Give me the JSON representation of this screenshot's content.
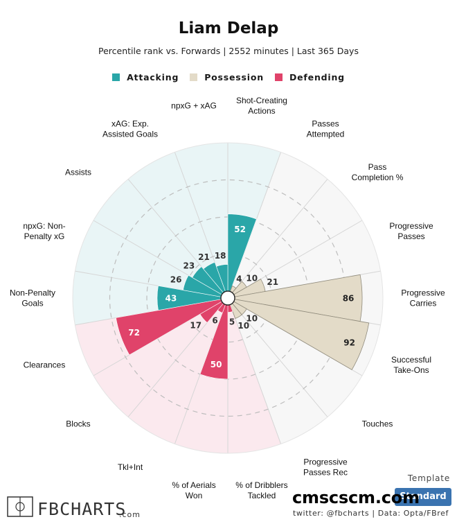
{
  "title": "Liam Delap",
  "subtitle": "Percentile rank vs. Forwards | 2552 minutes | Last 365 Days",
  "legend": [
    {
      "label": "Attacking",
      "color": "#2aa6a8"
    },
    {
      "label": "Possession",
      "color": "#e3dbc8"
    },
    {
      "label": "Defending",
      "color": "#e0436a"
    }
  ],
  "chart_data": {
    "type": "polar_bar",
    "title": "Liam Delap",
    "subtitle": "Percentile rank vs. Forwards | 2552 minutes | Last 365 Days",
    "rlim": [
      0,
      100
    ],
    "categories": [
      {
        "label": "Shot-Creating Actions",
        "lines": [
          "Shot-Creating",
          "Actions"
        ],
        "group": "Attacking",
        "value": 52
      },
      {
        "label": "Passes Attempted",
        "lines": [
          "Passes",
          "Attempted"
        ],
        "group": "Possession",
        "value": 4
      },
      {
        "label": "Pass Completion %",
        "lines": [
          "Pass",
          "Completion %"
        ],
        "group": "Possession",
        "value": 10
      },
      {
        "label": "Progressive Passes",
        "lines": [
          "Progressive",
          "Passes"
        ],
        "group": "Possession",
        "value": 21
      },
      {
        "label": "Progressive Carries",
        "lines": [
          "Progressive",
          "Carries"
        ],
        "group": "Possession",
        "value": 86
      },
      {
        "label": "Successful Take-Ons",
        "lines": [
          "Successful",
          "Take-Ons"
        ],
        "group": "Possession",
        "value": 92
      },
      {
        "label": "Touches",
        "lines": [
          "Touches"
        ],
        "group": "Possession",
        "value": 10
      },
      {
        "label": "Progressive Passes Rec",
        "lines": [
          "Progressive",
          "Passes Rec"
        ],
        "group": "Possession",
        "value": 10
      },
      {
        "label": "% of Dribblers Tackled",
        "lines": [
          "% of Dribblers",
          "Tackled"
        ],
        "group": "Defending",
        "value": 5
      },
      {
        "label": "% of Aerials Won",
        "lines": [
          "% of Aerials",
          "Won"
        ],
        "group": "Defending",
        "value": 50
      },
      {
        "label": "Tkl+Int",
        "lines": [
          "Tkl+Int"
        ],
        "group": "Defending",
        "value": 6
      },
      {
        "label": "Blocks",
        "lines": [
          "Blocks"
        ],
        "group": "Defending",
        "value": 17
      },
      {
        "label": "Clearances",
        "lines": [
          "Clearances"
        ],
        "group": "Defending",
        "value": 72
      },
      {
        "label": "Non-Penalty Goals",
        "lines": [
          "Non-Penalty",
          "Goals"
        ],
        "group": "Attacking",
        "value": 43
      },
      {
        "label": "npxG: Non-Penalty xG",
        "lines": [
          "npxG: Non-",
          "Penalty xG"
        ],
        "group": "Attacking",
        "value": 26
      },
      {
        "label": "Assists",
        "lines": [
          "Assists"
        ],
        "group": "Attacking",
        "value": 23
      },
      {
        "label": "xAG: Exp. Assisted Goals",
        "lines": [
          "xAG: Exp.",
          "Assisted Goals"
        ],
        "group": "Attacking",
        "value": 21
      },
      {
        "label": "npxG + xAG",
        "lines": [
          "npxG + xAG"
        ],
        "group": "Attacking",
        "value": 18
      }
    ],
    "colors": {
      "Attacking": "#2aa6a8",
      "Possession": "#e3dbc8",
      "Defending": "#e0436a",
      "bg_Attacking": "#e9f5f6",
      "bg_Possession": "#f7f7f7",
      "bg_Defending": "#fbe9ee"
    }
  },
  "footer": {
    "logo_text": "FBCHARTS",
    "logo_suffix": ".com",
    "credit": "twitter: @fbcharts | Data: Opta/FBref",
    "template_label": "Template",
    "template_button": "Standard",
    "watermark": "cmscscm.com"
  }
}
